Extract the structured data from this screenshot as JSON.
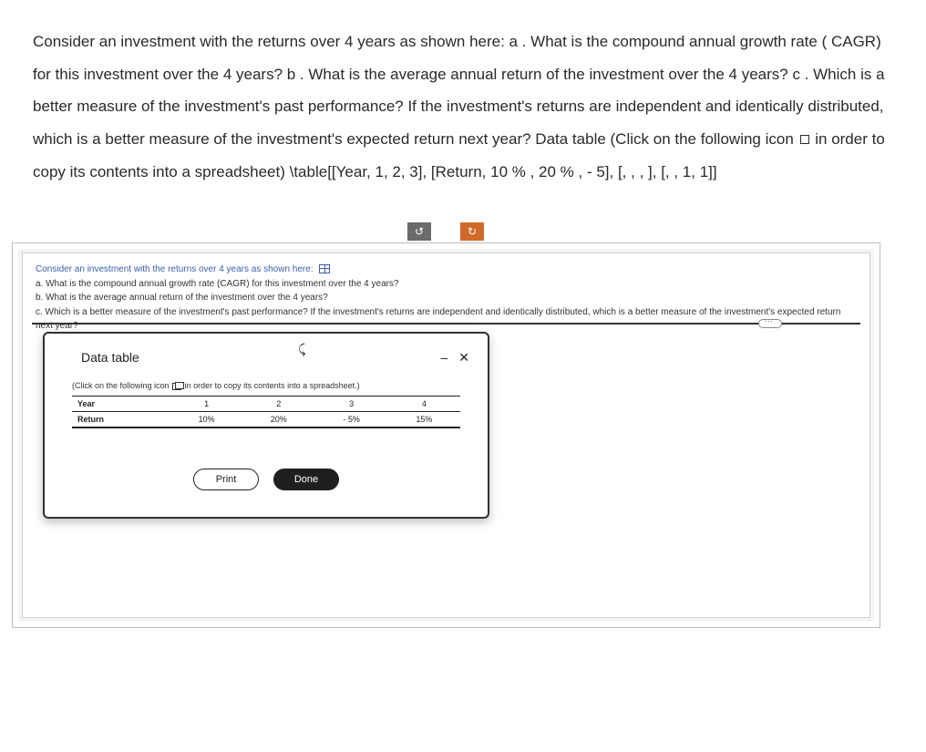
{
  "question": {
    "pre_text": "Consider an investment with the returns over 4 years as shown here: a . What is the compound annual growth rate ( CAGR) for this investment over the 4 years? b . What is the average annual return of the investment over the 4 years? c . Which is a better measure of the investment's past performance? If the investment's returns are independent and identically distributed, which is a better measure of the investment's expected return next year? Data table (Click on the following icon ",
    "post_text": " in order to copy its contents into a spreadsheet) \\table[[Year, 1, 2, 3], [Return, 10 % , 20 % ,  - 5], [, , , ], [, , 1, 1]]"
  },
  "toolbar": {
    "undo_glyph": "↺",
    "redo_glyph": "↻"
  },
  "prompt": {
    "intro": "Consider an investment with the returns over 4 years as shown here:",
    "a": "a. What is the compound annual growth rate (CAGR) for this investment over the 4 years?",
    "b": "b. What is the average annual return of the investment over the 4 years?",
    "c": "c. Which is a better measure of the investment's past performance? If the investment's returns are independent and identically distributed, which is a better measure of the investment's expected return next year?"
  },
  "modal": {
    "title": "Data table",
    "minimize": "–",
    "close": "✕",
    "instruction_pre": "(Click on the following icon ",
    "instruction_post": " in order to copy its contents into a spreadsheet.)",
    "print_label": "Print",
    "done_label": "Done"
  },
  "data_table": {
    "row_labels": [
      "Year",
      "Return"
    ],
    "columns": [
      "1",
      "2",
      "3",
      "4"
    ],
    "return_values": [
      "10%",
      "20%",
      "- 5%",
      "15%"
    ]
  }
}
